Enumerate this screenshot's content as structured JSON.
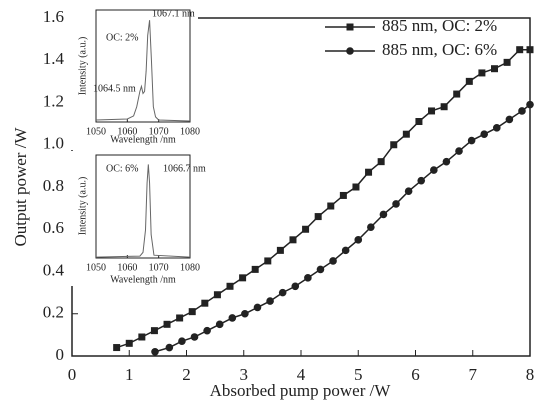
{
  "chart_data": [
    {
      "type": "line",
      "x_label": "Absorbed pump power /W",
      "y_label": "Output power /W",
      "xlim": [
        0,
        8
      ],
      "xticks": [
        0,
        1,
        2,
        3,
        4,
        5,
        6,
        7,
        8
      ],
      "ylim": [
        0,
        1.6
      ],
      "yticks": [
        0,
        0.2,
        0.4,
        0.6,
        0.8,
        {
          "value": 1,
          "label": "1.0"
        },
        1.2,
        1.4,
        1.6
      ],
      "grid": false,
      "legend": "upper right",
      "series": [
        {
          "name": "885 nm, OC: 2%",
          "color": "#222",
          "marker": "square",
          "x": [
            0.78,
            1.0,
            1.22,
            1.44,
            1.66,
            1.88,
            2.1,
            2.32,
            2.54,
            2.76,
            2.98,
            3.2,
            3.42,
            3.64,
            3.86,
            4.08,
            4.3,
            4.52,
            4.74,
            4.96,
            5.18,
            5.4,
            5.62,
            5.84,
            6.06,
            6.28,
            6.5,
            6.72,
            6.94,
            7.16,
            7.38,
            7.6,
            7.82,
            8.0
          ],
          "values": [
            0.04,
            0.06,
            0.09,
            0.12,
            0.15,
            0.18,
            0.21,
            0.25,
            0.29,
            0.33,
            0.37,
            0.41,
            0.45,
            0.5,
            0.55,
            0.6,
            0.66,
            0.71,
            0.76,
            0.8,
            0.87,
            0.92,
            1.0,
            1.05,
            1.11,
            1.16,
            1.18,
            1.24,
            1.3,
            1.34,
            1.36,
            1.39,
            1.45,
            1.45
          ]
        },
        {
          "name": "885 nm, OC: 6%",
          "color": "#222",
          "marker": "circle",
          "x": [
            1.45,
            1.7,
            1.92,
            2.14,
            2.36,
            2.58,
            2.8,
            3.02,
            3.24,
            3.46,
            3.68,
            3.9,
            4.12,
            4.34,
            4.56,
            4.78,
            5.0,
            5.22,
            5.44,
            5.66,
            5.88,
            6.1,
            6.32,
            6.54,
            6.76,
            6.98,
            7.2,
            7.42,
            7.64,
            7.86,
            8.0
          ],
          "values": [
            0.02,
            0.04,
            0.07,
            0.09,
            0.12,
            0.15,
            0.18,
            0.2,
            0.23,
            0.26,
            0.3,
            0.33,
            0.37,
            0.41,
            0.45,
            0.5,
            0.55,
            0.61,
            0.67,
            0.72,
            0.78,
            0.83,
            0.88,
            0.92,
            0.97,
            1.02,
            1.05,
            1.08,
            1.12,
            1.16,
            1.19
          ]
        }
      ]
    },
    {
      "type": "line",
      "x_label": "Wavelength /nm",
      "y_label": "Intensity (a.u.)",
      "annotations": [
        "OC: 2%",
        "1067.1 nm",
        "1064.5 nm"
      ],
      "xlim": [
        1050,
        1080
      ],
      "xticks": [
        1050,
        1060,
        1070,
        1080
      ],
      "ylim": [
        0,
        1.1
      ],
      "series": [
        {
          "color": "#666",
          "x": [
            1050,
            1060,
            1062,
            1063,
            1064,
            1064.5,
            1065,
            1065.5,
            1066,
            1066.5,
            1067.1,
            1067.7,
            1068.3,
            1069,
            1070,
            1080
          ],
          "values": [
            0.02,
            0.03,
            0.06,
            0.15,
            0.3,
            0.35,
            0.28,
            0.3,
            0.5,
            0.85,
            1.0,
            0.6,
            0.15,
            0.05,
            0.02,
            0.01
          ]
        }
      ]
    },
    {
      "type": "line",
      "x_label": "Wavelength /nm",
      "y_label": "Intensity (a.u.)",
      "annotations": [
        "OC: 6%",
        "1066.7 nm"
      ],
      "xlim": [
        1050,
        1080
      ],
      "xticks": [
        1050,
        1060,
        1070,
        1080
      ],
      "ylim": [
        0,
        1.1
      ],
      "series": [
        {
          "color": "#666",
          "x": [
            1050,
            1064,
            1065,
            1065.8,
            1066.3,
            1066.7,
            1067.1,
            1067.6,
            1068.5,
            1080
          ],
          "values": [
            0.01,
            0.02,
            0.06,
            0.3,
            0.8,
            1.0,
            0.8,
            0.25,
            0.03,
            0.01
          ]
        }
      ]
    }
  ]
}
